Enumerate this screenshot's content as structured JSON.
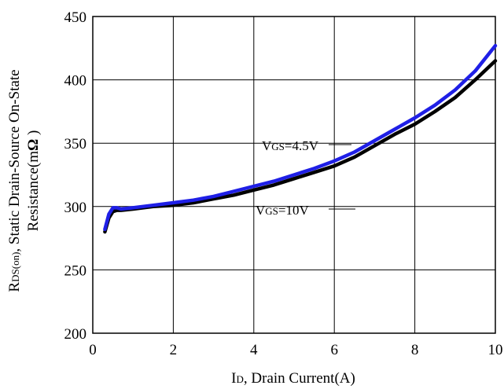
{
  "chart_data": {
    "type": "line",
    "title": "",
    "xlabel": {
      "main": "I",
      "sub": "D",
      "rest": ", Drain Current(A)"
    },
    "ylabel": {
      "line1_main": "R",
      "line1_sub": "DS(on)",
      "line1_rest": ", Static Drain-Source On-State",
      "line2_main": "Resistance(m",
      "line2_omega": "Ω",
      "line2_rest": " )"
    },
    "xlim": [
      0,
      10
    ],
    "ylim": [
      200,
      450
    ],
    "xticks": [
      0,
      2,
      4,
      6,
      8,
      10
    ],
    "yticks": [
      200,
      250,
      300,
      350,
      400,
      450
    ],
    "xtick_labels": [
      "0",
      "2",
      "4",
      "6",
      "8",
      "10"
    ],
    "ytick_labels": [
      "200",
      "250",
      "300",
      "350",
      "400",
      "450"
    ],
    "grid": true,
    "series": [
      {
        "name": "VGS=10V",
        "label_main": "V",
        "label_sub": "GS",
        "label_rest": "=10V",
        "color": "#000000",
        "x": [
          0.3,
          0.4,
          0.5,
          0.6,
          0.7,
          1,
          1.5,
          2,
          2.5,
          3,
          3.5,
          4,
          4.5,
          5,
          5.5,
          6,
          6.5,
          7,
          7.5,
          8,
          8.5,
          9,
          9.5,
          10
        ],
        "y": [
          280,
          291,
          296,
          297,
          297,
          298,
          300,
          301,
          303,
          306,
          309,
          313,
          317,
          322,
          327,
          332,
          339,
          348,
          357,
          365,
          375,
          386,
          400,
          415
        ]
      },
      {
        "name": "VGS=4.5V",
        "label_main": "V",
        "label_sub": "GS",
        "label_rest": "=4.5V",
        "color": "#1f1fe6",
        "x": [
          0.3,
          0.4,
          0.5,
          0.6,
          0.7,
          1,
          1.5,
          2,
          2.5,
          3,
          3.5,
          4,
          4.5,
          5,
          5.5,
          6,
          6.5,
          7,
          7.5,
          8,
          8.5,
          9,
          9.5,
          10
        ],
        "y": [
          282,
          294,
          299,
          299,
          298,
          299,
          301,
          303,
          305,
          308,
          312,
          316,
          320,
          325,
          330,
          336,
          343,
          352,
          361,
          370,
          380,
          392,
          407,
          427
        ]
      }
    ]
  }
}
